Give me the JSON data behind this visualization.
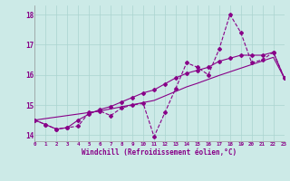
{
  "xlabel": "Windchill (Refroidissement éolien,°C)",
  "bg_color": "#cceae7",
  "grid_color": "#aad4d0",
  "line_color": "#880088",
  "x_values": [
    0,
    1,
    2,
    3,
    4,
    5,
    6,
    7,
    8,
    9,
    10,
    11,
    12,
    13,
    14,
    15,
    16,
    17,
    18,
    19,
    20,
    21,
    22,
    23
  ],
  "y_jagged": [
    14.5,
    14.35,
    14.2,
    14.25,
    14.3,
    14.75,
    14.8,
    14.65,
    14.9,
    15.0,
    15.05,
    13.95,
    14.75,
    15.55,
    16.4,
    16.25,
    16.0,
    16.85,
    18.0,
    17.4,
    16.4,
    16.5,
    16.75,
    15.9
  ],
  "y_middle": [
    14.5,
    14.35,
    14.2,
    14.25,
    14.5,
    14.7,
    14.85,
    14.95,
    15.1,
    15.25,
    15.4,
    15.5,
    15.7,
    15.9,
    16.05,
    16.15,
    16.25,
    16.45,
    16.55,
    16.65,
    16.65,
    16.65,
    16.75,
    15.9
  ],
  "y_linear": [
    14.5,
    14.55,
    14.6,
    14.65,
    14.7,
    14.75,
    14.8,
    14.87,
    14.94,
    15.01,
    15.08,
    15.15,
    15.3,
    15.45,
    15.6,
    15.72,
    15.85,
    15.98,
    16.1,
    16.22,
    16.34,
    16.46,
    16.58,
    15.9
  ],
  "ylim": [
    13.8,
    18.3
  ],
  "xlim": [
    0,
    23
  ],
  "yticks": [
    14,
    15,
    16,
    17,
    18
  ],
  "xticks": [
    0,
    1,
    2,
    3,
    4,
    5,
    6,
    7,
    8,
    9,
    10,
    11,
    12,
    13,
    14,
    15,
    16,
    17,
    18,
    19,
    20,
    21,
    22,
    23
  ]
}
